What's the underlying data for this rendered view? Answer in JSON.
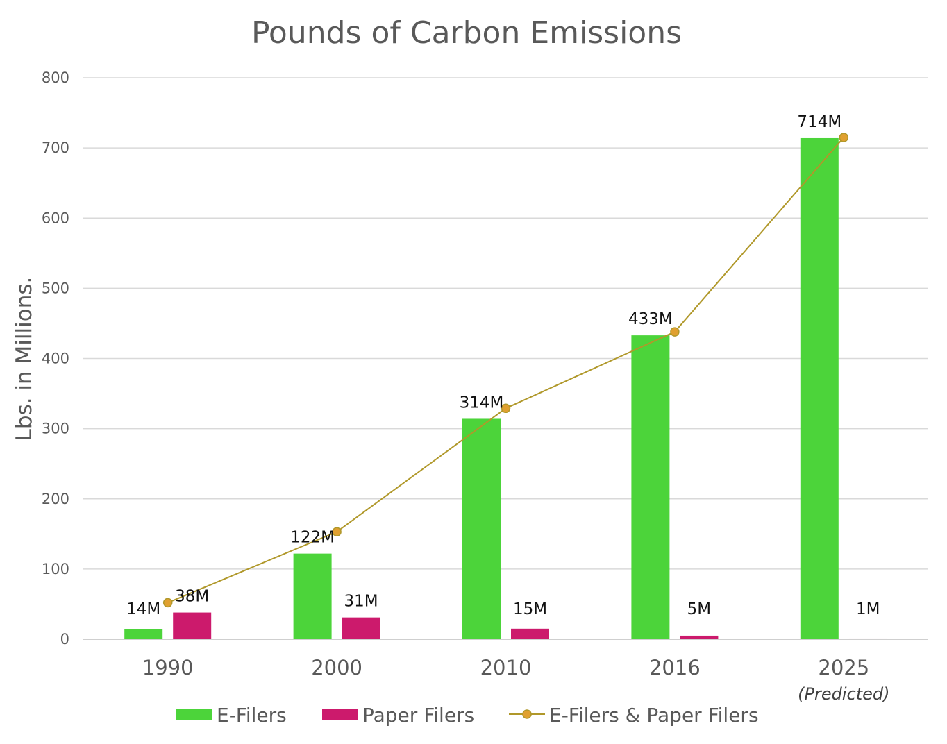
{
  "chart_data": {
    "type": "bar",
    "title": "Pounds of Carbon Emissions",
    "ylabel": "Lbs. in Millions.",
    "xlabel": "",
    "ylim": [
      0,
      800
    ],
    "yticks": [
      0,
      100,
      200,
      300,
      400,
      500,
      600,
      700,
      800
    ],
    "categories": [
      "1990",
      "2000",
      "2010",
      "2016",
      "2025"
    ],
    "category_notes": [
      "",
      "",
      "",
      "",
      "(Predicted)"
    ],
    "grid": true,
    "legend_position": "bottom",
    "series": [
      {
        "name": "E-Filers",
        "kind": "bar",
        "color": "#4cd43a",
        "values": [
          14,
          122,
          314,
          433,
          714
        ],
        "labels": [
          "14M",
          "122M",
          "314M",
          "433M",
          "714M"
        ]
      },
      {
        "name": "Paper Filers",
        "kind": "bar",
        "color": "#cc1a6c",
        "values": [
          38,
          31,
          15,
          5,
          1
        ],
        "labels": [
          "38M",
          "31M",
          "15M",
          "5M",
          "1M"
        ]
      },
      {
        "name": "E-Filers & Paper Filers",
        "kind": "line",
        "color": "#b0982a",
        "marker_color": "#e0a030",
        "values": [
          52,
          153,
          329,
          438,
          715
        ]
      }
    ]
  }
}
